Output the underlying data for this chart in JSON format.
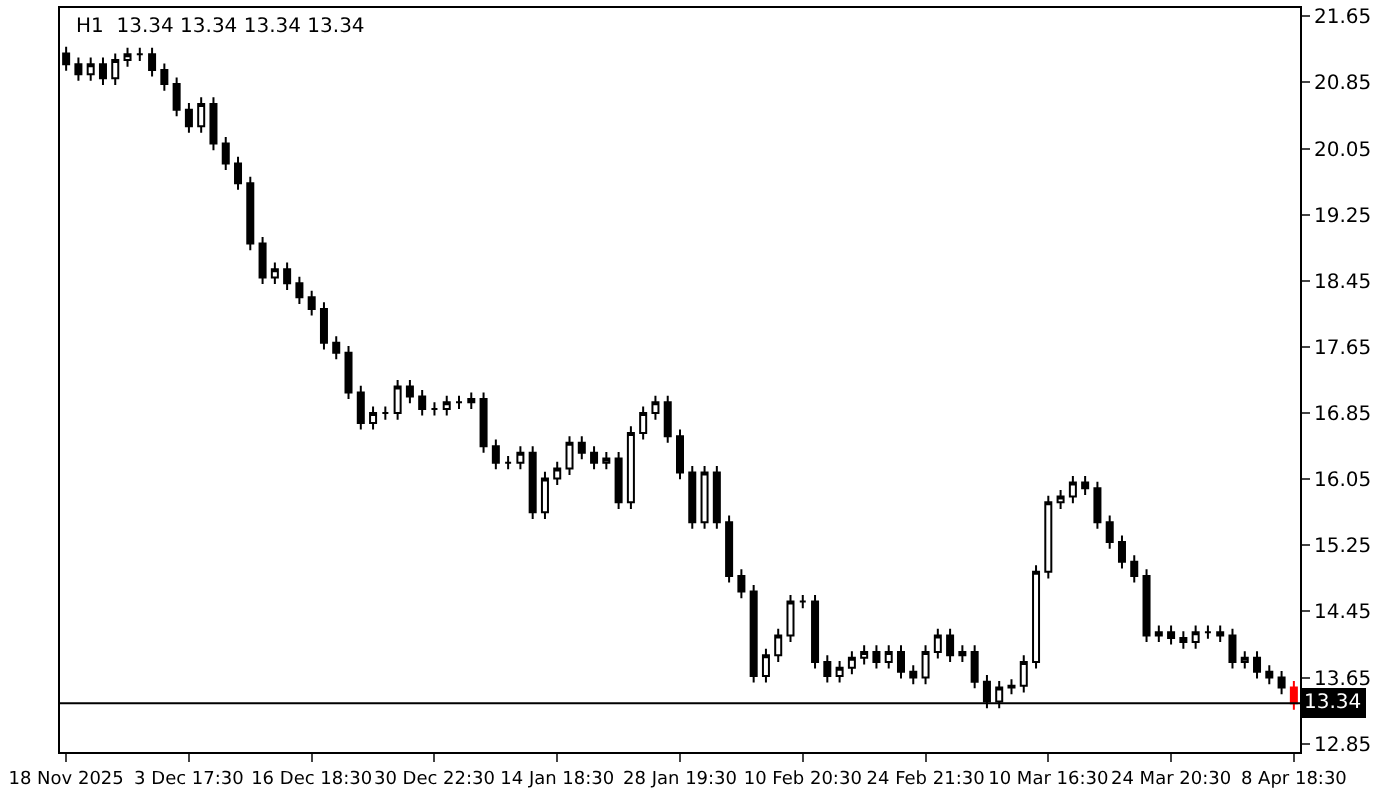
{
  "chart_data": {
    "type": "candlestick",
    "title": "H1  13.34 13.34 13.34 13.34",
    "categories": [
      "18 Nov 2025",
      null,
      null,
      null,
      null,
      null,
      null,
      null,
      null,
      null,
      "3 Dec 17:30",
      null,
      null,
      null,
      null,
      null,
      null,
      null,
      null,
      null,
      "16 Dec 18:30",
      null,
      null,
      null,
      null,
      null,
      null,
      null,
      null,
      null,
      "30 Dec 22:30",
      null,
      null,
      null,
      null,
      null,
      null,
      null,
      null,
      null,
      "14 Jan 18:30",
      null,
      null,
      null,
      null,
      null,
      null,
      null,
      null,
      null,
      "28 Jan 19:30",
      null,
      null,
      null,
      null,
      null,
      null,
      null,
      null,
      null,
      "10 Feb 20:30",
      null,
      null,
      null,
      null,
      null,
      null,
      null,
      null,
      null,
      "24 Feb 21:30",
      null,
      null,
      null,
      null,
      null,
      null,
      null,
      null,
      null,
      "10 Mar 16:30",
      null,
      null,
      null,
      null,
      null,
      null,
      null,
      null,
      null,
      "24 Mar 20:30",
      null,
      null,
      null,
      null,
      null,
      null,
      null,
      null,
      null,
      "8 Apr 18:30"
    ],
    "ohlc": [
      [
        21.2,
        21.28,
        20.99,
        21.07
      ],
      [
        21.07,
        21.15,
        20.87,
        20.95
      ],
      [
        20.95,
        21.15,
        20.87,
        21.07
      ],
      [
        21.07,
        21.15,
        20.82,
        20.9
      ],
      [
        20.9,
        21.2,
        20.82,
        21.12
      ],
      [
        21.12,
        21.27,
        21.04,
        21.19
      ],
      [
        21.19,
        21.27,
        21.11,
        21.19
      ],
      [
        21.19,
        21.27,
        20.92,
        21.0
      ],
      [
        21.0,
        21.08,
        20.75,
        20.83
      ],
      [
        20.83,
        20.91,
        20.44,
        20.52
      ],
      [
        20.52,
        20.6,
        20.24,
        20.32
      ],
      [
        20.32,
        20.67,
        20.24,
        20.59
      ],
      [
        20.59,
        20.67,
        20.03,
        20.11
      ],
      [
        20.11,
        20.19,
        19.79,
        19.87
      ],
      [
        19.87,
        19.95,
        19.55,
        19.63
      ],
      [
        19.63,
        19.71,
        18.82,
        18.9
      ],
      [
        18.9,
        18.98,
        18.41,
        18.49
      ],
      [
        18.49,
        18.67,
        18.41,
        18.59
      ],
      [
        18.59,
        18.67,
        18.34,
        18.42
      ],
      [
        18.42,
        18.5,
        18.17,
        18.25
      ],
      [
        18.25,
        18.33,
        18.03,
        18.11
      ],
      [
        18.11,
        18.19,
        17.62,
        17.7
      ],
      [
        17.7,
        17.78,
        17.5,
        17.58
      ],
      [
        17.58,
        17.66,
        17.02,
        17.1
      ],
      [
        17.1,
        17.18,
        16.65,
        16.73
      ],
      [
        16.73,
        16.93,
        16.65,
        16.85
      ],
      [
        16.85,
        16.93,
        16.77,
        16.85
      ],
      [
        16.85,
        17.25,
        16.77,
        17.17
      ],
      [
        17.17,
        17.25,
        16.97,
        17.05
      ],
      [
        17.05,
        17.13,
        16.82,
        16.9
      ],
      [
        16.9,
        16.98,
        16.82,
        16.9
      ],
      [
        16.9,
        17.06,
        16.82,
        16.98
      ],
      [
        16.98,
        17.06,
        16.9,
        16.98
      ],
      [
        16.98,
        17.1,
        16.9,
        17.02
      ],
      [
        17.02,
        17.1,
        16.37,
        16.45
      ],
      [
        16.45,
        16.53,
        16.17,
        16.25
      ],
      [
        16.25,
        16.33,
        16.17,
        16.25
      ],
      [
        16.25,
        16.45,
        16.17,
        16.37
      ],
      [
        16.37,
        16.45,
        15.57,
        15.65
      ],
      [
        15.65,
        16.14,
        15.57,
        16.06
      ],
      [
        16.06,
        16.26,
        15.98,
        16.18
      ],
      [
        16.18,
        16.57,
        16.1,
        16.49
      ],
      [
        16.49,
        16.57,
        16.29,
        16.37
      ],
      [
        16.37,
        16.45,
        16.17,
        16.25
      ],
      [
        16.25,
        16.38,
        16.17,
        16.3
      ],
      [
        16.3,
        16.38,
        15.69,
        15.77
      ],
      [
        15.77,
        16.69,
        15.69,
        16.61
      ],
      [
        16.61,
        16.93,
        16.53,
        16.85
      ],
      [
        16.85,
        17.06,
        16.77,
        16.98
      ],
      [
        16.98,
        17.06,
        16.49,
        16.57
      ],
      [
        16.57,
        16.65,
        16.05,
        16.13
      ],
      [
        16.13,
        16.21,
        15.45,
        15.53
      ],
      [
        15.53,
        16.21,
        15.45,
        16.13
      ],
      [
        16.13,
        16.21,
        15.45,
        15.53
      ],
      [
        15.53,
        15.61,
        14.8,
        14.88
      ],
      [
        14.88,
        14.96,
        14.61,
        14.69
      ],
      [
        14.69,
        14.77,
        13.59,
        13.67
      ],
      [
        13.67,
        14.0,
        13.59,
        13.92
      ],
      [
        13.92,
        14.24,
        13.84,
        14.16
      ],
      [
        14.16,
        14.65,
        14.08,
        14.57
      ],
      [
        14.57,
        14.65,
        14.49,
        14.57
      ],
      [
        14.57,
        14.65,
        13.76,
        13.84
      ],
      [
        13.84,
        13.92,
        13.59,
        13.67
      ],
      [
        13.67,
        13.85,
        13.59,
        13.77
      ],
      [
        13.77,
        13.97,
        13.69,
        13.89
      ],
      [
        13.89,
        14.04,
        13.81,
        13.96
      ],
      [
        13.96,
        14.04,
        13.76,
        13.84
      ],
      [
        13.84,
        14.04,
        13.76,
        13.96
      ],
      [
        13.96,
        14.04,
        13.64,
        13.72
      ],
      [
        13.72,
        13.8,
        13.57,
        13.65
      ],
      [
        13.65,
        14.04,
        13.57,
        13.96
      ],
      [
        13.96,
        14.24,
        13.88,
        14.16
      ],
      [
        14.16,
        14.24,
        13.84,
        13.92
      ],
      [
        13.92,
        14.04,
        13.84,
        13.96
      ],
      [
        13.96,
        14.04,
        13.52,
        13.6
      ],
      [
        13.6,
        13.68,
        13.28,
        13.36
      ],
      [
        13.36,
        13.61,
        13.28,
        13.53
      ],
      [
        13.53,
        13.63,
        13.45,
        13.55
      ],
      [
        13.55,
        13.92,
        13.47,
        13.84
      ],
      [
        13.84,
        15.01,
        13.76,
        14.93
      ],
      [
        14.93,
        15.85,
        14.85,
        15.77
      ],
      [
        15.77,
        15.92,
        15.69,
        15.84
      ],
      [
        15.84,
        16.09,
        15.76,
        16.01
      ],
      [
        16.01,
        16.09,
        15.86,
        15.94
      ],
      [
        15.94,
        16.02,
        15.45,
        15.53
      ],
      [
        15.53,
        15.61,
        15.21,
        15.29
      ],
      [
        15.29,
        15.37,
        14.97,
        15.05
      ],
      [
        15.05,
        15.13,
        14.8,
        14.88
      ],
      [
        14.88,
        14.96,
        14.08,
        14.16
      ],
      [
        14.16,
        14.28,
        14.08,
        14.2
      ],
      [
        14.2,
        14.28,
        14.05,
        14.13
      ],
      [
        14.13,
        14.21,
        14.0,
        14.08
      ],
      [
        14.08,
        14.28,
        14.0,
        14.2
      ],
      [
        14.2,
        14.28,
        14.12,
        14.2
      ],
      [
        14.2,
        14.28,
        14.08,
        14.16
      ],
      [
        14.16,
        14.24,
        13.76,
        13.84
      ],
      [
        13.84,
        13.97,
        13.76,
        13.89
      ],
      [
        13.89,
        13.97,
        13.64,
        13.72
      ],
      [
        13.72,
        13.8,
        13.57,
        13.65
      ],
      [
        13.65,
        13.73,
        13.45,
        13.53
      ],
      [
        13.53,
        13.61,
        13.26,
        13.34
      ]
    ],
    "colors": [
      "#000000",
      "#000000",
      "#000000",
      "#000000",
      "#000000",
      "#000000",
      "#000000",
      "#000000",
      "#000000",
      "#000000",
      "#000000",
      "#000000",
      "#000000",
      "#000000",
      "#000000",
      "#000000",
      "#000000",
      "#000000",
      "#000000",
      "#000000",
      "#000000",
      "#000000",
      "#000000",
      "#000000",
      "#000000",
      "#000000",
      "#000000",
      "#000000",
      "#000000",
      "#000000",
      "#000000",
      "#000000",
      "#000000",
      "#000000",
      "#000000",
      "#000000",
      "#000000",
      "#000000",
      "#000000",
      "#000000",
      "#000000",
      "#000000",
      "#000000",
      "#000000",
      "#000000",
      "#000000",
      "#000000",
      "#000000",
      "#000000",
      "#000000",
      "#000000",
      "#000000",
      "#000000",
      "#000000",
      "#000000",
      "#000000",
      "#000000",
      "#000000",
      "#000000",
      "#000000",
      "#000000",
      "#000000",
      "#000000",
      "#000000",
      "#000000",
      "#000000",
      "#000000",
      "#000000",
      "#000000",
      "#000000",
      "#000000",
      "#000000",
      "#000000",
      "#000000",
      "#000000",
      "#000000",
      "#000000",
      "#000000",
      "#000000",
      "#000000",
      "#000000",
      "#000000",
      "#000000",
      "#000000",
      "#000000",
      "#000000",
      "#000000",
      "#000000",
      "#000000",
      "#000000",
      "#000000",
      "#000000",
      "#000000",
      "#000000",
      "#000000",
      "#000000",
      "#000000",
      "#000000",
      "#000000",
      "#000000",
      "#ff0000"
    ],
    "ylim": [
      12.75,
      21.75
    ],
    "yticks": [
      12.85,
      13.65,
      14.45,
      15.25,
      16.05,
      16.85,
      17.65,
      18.45,
      19.25,
      20.05,
      20.85,
      21.65
    ],
    "ref_lines": [
      {
        "axis": "y",
        "value": 13.34,
        "label": "13.34",
        "color": "#000000"
      }
    ]
  }
}
